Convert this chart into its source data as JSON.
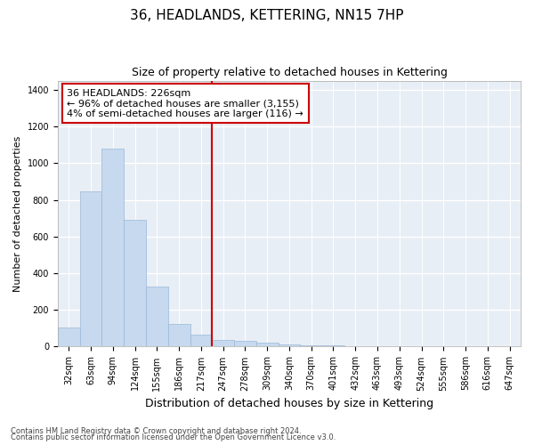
{
  "title": "36, HEADLANDS, KETTERING, NN15 7HP",
  "subtitle": "Size of property relative to detached houses in Kettering",
  "xlabel": "Distribution of detached houses by size in Kettering",
  "ylabel": "Number of detached properties",
  "footer_line1": "Contains HM Land Registry data © Crown copyright and database right 2024.",
  "footer_line2": "Contains public sector information licensed under the Open Government Licence v3.0.",
  "bar_labels": [
    "32sqm",
    "63sqm",
    "94sqm",
    "124sqm",
    "155sqm",
    "186sqm",
    "217sqm",
    "247sqm",
    "278sqm",
    "309sqm",
    "340sqm",
    "370sqm",
    "401sqm",
    "432sqm",
    "463sqm",
    "493sqm",
    "524sqm",
    "555sqm",
    "586sqm",
    "616sqm",
    "647sqm"
  ],
  "bar_values": [
    103,
    845,
    1080,
    690,
    325,
    125,
    65,
    38,
    30,
    20,
    10,
    8,
    7,
    0,
    0,
    0,
    0,
    0,
    0,
    0,
    0
  ],
  "bar_color": "#c6d9ee",
  "bar_edge_color": "#9ab8d8",
  "ylim": [
    0,
    1450
  ],
  "yticks": [
    0,
    200,
    400,
    600,
    800,
    1000,
    1200,
    1400
  ],
  "vline_x_index": 6.5,
  "vline_color": "#cc0000",
  "annot_line1": "36 HEADLANDS: 226sqm",
  "annot_line2": "← 96% of detached houses are smaller (3,155)",
  "annot_line3": "4% of semi-detached houses are larger (116) →",
  "bg_color": "#ffffff",
  "plot_bg_color": "#e8eef5",
  "grid_color": "#ffffff",
  "title_fontsize": 11,
  "subtitle_fontsize": 9,
  "xlabel_fontsize": 9,
  "ylabel_fontsize": 8,
  "tick_fontsize": 7,
  "footer_fontsize": 6,
  "annot_fontsize": 8
}
